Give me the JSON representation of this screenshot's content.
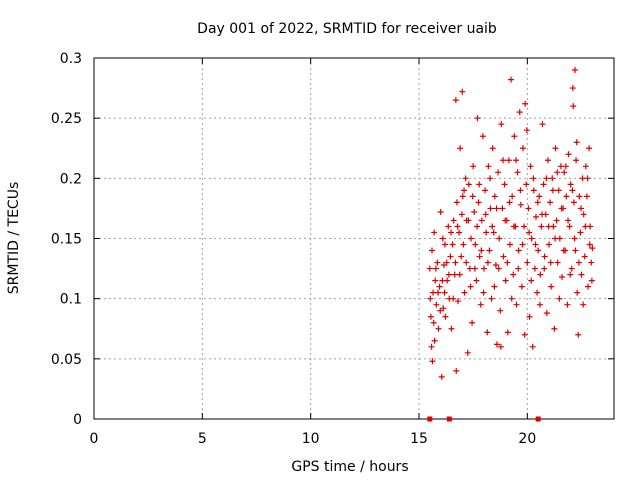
{
  "chart_data": {
    "type": "scatter",
    "title": "Day 001 of 2022, SRMTID for receiver uaib",
    "xlabel": "GPS time / hours",
    "ylabel": "SRMTID / TECUs",
    "xlim": [
      0,
      24
    ],
    "ylim": [
      0,
      0.3
    ],
    "xticks": [
      {
        "value": 0,
        "label": "0"
      },
      {
        "value": 5,
        "label": "5"
      },
      {
        "value": 10,
        "label": "10"
      },
      {
        "value": 15,
        "label": "15"
      },
      {
        "value": 20,
        "label": "20"
      }
    ],
    "yticks": [
      {
        "value": 0,
        "label": "0"
      },
      {
        "value": 0.05,
        "label": "0.05"
      },
      {
        "value": 0.1,
        "label": "0.1"
      },
      {
        "value": 0.15,
        "label": "0.15"
      },
      {
        "value": 0.2,
        "label": "0.2"
      },
      {
        "value": 0.25,
        "label": "0.25"
      },
      {
        "value": 0.3,
        "label": "0.3"
      }
    ],
    "grid": true,
    "marker": "plus",
    "color": "#e00000",
    "baseline_markers": [
      15.5,
      16.4,
      20.5
    ],
    "series": [
      {
        "name": "SRMTID",
        "points": [
          [
            15.5,
            0.125
          ],
          [
            15.55,
            0.085
          ],
          [
            15.6,
            0.14
          ],
          [
            15.62,
            0.048
          ],
          [
            15.65,
            0.105
          ],
          [
            15.7,
            0.155
          ],
          [
            15.72,
            0.065
          ],
          [
            15.75,
            0.115
          ],
          [
            15.8,
            0.095
          ],
          [
            15.85,
            0.13
          ],
          [
            15.9,
            0.075
          ],
          [
            15.95,
            0.11
          ],
          [
            16.0,
            0.172
          ],
          [
            16.05,
            0.035
          ],
          [
            16.1,
            0.15
          ],
          [
            16.12,
            0.092
          ],
          [
            16.15,
            0.128
          ],
          [
            16.2,
            0.145
          ],
          [
            16.22,
            0.085
          ],
          [
            16.3,
            0.115
          ],
          [
            16.35,
            0.16
          ],
          [
            16.4,
            0.1
          ],
          [
            16.45,
            0.135
          ],
          [
            16.5,
            0.075
          ],
          [
            16.55,
            0.145
          ],
          [
            16.6,
            0.165
          ],
          [
            16.65,
            0.12
          ],
          [
            16.7,
            0.265
          ],
          [
            16.72,
            0.04
          ],
          [
            16.75,
            0.18
          ],
          [
            16.8,
            0.098
          ],
          [
            16.85,
            0.155
          ],
          [
            16.9,
            0.225
          ],
          [
            16.95,
            0.135
          ],
          [
            17.0,
            0.272
          ],
          [
            17.02,
            0.185
          ],
          [
            17.05,
            0.145
          ],
          [
            17.1,
            0.105
          ],
          [
            17.15,
            0.2
          ],
          [
            17.2,
            0.165
          ],
          [
            17.25,
            0.055
          ],
          [
            17.3,
            0.195
          ],
          [
            17.35,
            0.125
          ],
          [
            17.4,
            0.15
          ],
          [
            17.45,
            0.08
          ],
          [
            17.5,
            0.21
          ],
          [
            17.55,
            0.172
          ],
          [
            17.6,
            0.145
          ],
          [
            17.65,
            0.115
          ],
          [
            17.7,
            0.25
          ],
          [
            17.75,
            0.18
          ],
          [
            17.8,
            0.135
          ],
          [
            17.85,
            0.095
          ],
          [
            17.9,
            0.165
          ],
          [
            17.95,
            0.235
          ],
          [
            18.0,
            0.125
          ],
          [
            18.05,
            0.19
          ],
          [
            18.1,
            0.155
          ],
          [
            18.15,
            0.072
          ],
          [
            18.2,
            0.21
          ],
          [
            18.25,
            0.14
          ],
          [
            18.3,
            0.175
          ],
          [
            18.35,
            0.1
          ],
          [
            18.4,
            0.225
          ],
          [
            18.45,
            0.155
          ],
          [
            18.5,
            0.185
          ],
          [
            18.55,
            0.128
          ],
          [
            18.6,
            0.062
          ],
          [
            18.65,
            0.205
          ],
          [
            18.7,
            0.15
          ],
          [
            18.75,
            0.09
          ],
          [
            18.8,
            0.245
          ],
          [
            18.85,
            0.175
          ],
          [
            18.9,
            0.135
          ],
          [
            18.95,
            0.195
          ],
          [
            19.0,
            0.115
          ],
          [
            19.05,
            0.165
          ],
          [
            19.1,
            0.072
          ],
          [
            19.15,
            0.215
          ],
          [
            19.2,
            0.145
          ],
          [
            19.25,
            0.282
          ],
          [
            19.3,
            0.185
          ],
          [
            19.35,
            0.12
          ],
          [
            19.4,
            0.235
          ],
          [
            19.45,
            0.16
          ],
          [
            19.5,
            0.095
          ],
          [
            19.55,
            0.205
          ],
          [
            19.6,
            0.14
          ],
          [
            19.65,
            0.255
          ],
          [
            19.7,
            0.178
          ],
          [
            19.75,
            0.11
          ],
          [
            19.8,
            0.225
          ],
          [
            19.85,
            0.16
          ],
          [
            19.9,
            0.262
          ],
          [
            19.95,
            0.195
          ],
          [
            20.0,
            0.13
          ],
          [
            20.05,
            0.175
          ],
          [
            20.1,
            0.085
          ],
          [
            20.15,
            0.21
          ],
          [
            20.2,
            0.15
          ],
          [
            20.25,
            0.06
          ],
          [
            20.3,
            0.19
          ],
          [
            20.35,
            0.125
          ],
          [
            20.4,
            0.168
          ],
          [
            20.45,
            0.105
          ],
          [
            20.5,
            0.14
          ],
          [
            20.55,
            0.185
          ],
          [
            20.6,
            0.12
          ],
          [
            20.65,
            0.16
          ],
          [
            20.7,
            0.245
          ],
          [
            20.75,
            0.195
          ],
          [
            20.8,
            0.135
          ],
          [
            20.85,
            0.17
          ],
          [
            20.9,
            0.088
          ],
          [
            20.95,
            0.215
          ],
          [
            21.0,
            0.145
          ],
          [
            21.05,
            0.18
          ],
          [
            21.1,
            0.11
          ],
          [
            21.15,
            0.2
          ],
          [
            21.2,
            0.16
          ],
          [
            21.25,
            0.075
          ],
          [
            21.3,
            0.225
          ],
          [
            21.35,
            0.165
          ],
          [
            21.4,
            0.13
          ],
          [
            21.45,
            0.19
          ],
          [
            21.5,
            0.15
          ],
          [
            21.55,
            0.21
          ],
          [
            21.6,
            0.118
          ],
          [
            21.65,
            0.175
          ],
          [
            21.7,
            0.205
          ],
          [
            21.75,
            0.14
          ],
          [
            21.8,
            0.185
          ],
          [
            21.85,
            0.095
          ],
          [
            21.9,
            0.22
          ],
          [
            21.95,
            0.16
          ],
          [
            22.0,
            0.195
          ],
          [
            22.05,
            0.125
          ],
          [
            22.1,
            0.275
          ],
          [
            22.12,
            0.26
          ],
          [
            22.15,
            0.18
          ],
          [
            22.2,
            0.29
          ],
          [
            22.22,
            0.14
          ],
          [
            22.25,
            0.215
          ],
          [
            22.3,
            0.105
          ],
          [
            22.35,
            0.07
          ],
          [
            22.4,
            0.185
          ],
          [
            22.45,
            0.155
          ],
          [
            22.5,
            0.12
          ],
          [
            22.55,
            0.2
          ],
          [
            22.6,
            0.17
          ],
          [
            22.65,
            0.135
          ],
          [
            22.7,
            0.21
          ],
          [
            22.75,
            0.185
          ],
          [
            22.8,
            0.11
          ],
          [
            22.85,
            0.225
          ],
          [
            22.9,
            0.16
          ],
          [
            22.95,
            0.13
          ],
          [
            23.0,
            0.142
          ],
          [
            15.52,
            0.1
          ],
          [
            15.58,
            0.06
          ],
          [
            15.68,
            0.08
          ],
          [
            15.78,
            0.125
          ],
          [
            15.88,
            0.105
          ],
          [
            15.98,
            0.09
          ],
          [
            16.08,
            0.115
          ],
          [
            16.18,
            0.105
          ],
          [
            16.28,
            0.13
          ],
          [
            16.38,
            0.12
          ],
          [
            16.48,
            0.155
          ],
          [
            16.58,
            0.1
          ],
          [
            16.68,
            0.13
          ],
          [
            16.78,
            0.16
          ],
          [
            16.88,
            0.12
          ],
          [
            16.98,
            0.17
          ],
          [
            17.08,
            0.19
          ],
          [
            17.18,
            0.13
          ],
          [
            17.28,
            0.165
          ],
          [
            17.38,
            0.11
          ],
          [
            17.48,
            0.185
          ],
          [
            17.58,
            0.125
          ],
          [
            17.68,
            0.16
          ],
          [
            17.78,
            0.195
          ],
          [
            17.88,
            0.14
          ],
          [
            17.98,
            0.105
          ],
          [
            18.08,
            0.17
          ],
          [
            18.18,
            0.13
          ],
          [
            18.28,
            0.2
          ],
          [
            18.38,
            0.16
          ],
          [
            18.48,
            0.11
          ],
          [
            18.58,
            0.175
          ],
          [
            18.68,
            0.125
          ],
          [
            18.78,
            0.06
          ],
          [
            18.88,
            0.215
          ],
          [
            18.98,
            0.165
          ],
          [
            19.08,
            0.13
          ],
          [
            19.18,
            0.18
          ],
          [
            19.28,
            0.1
          ],
          [
            19.38,
            0.16
          ],
          [
            19.48,
            0.215
          ],
          [
            19.58,
            0.125
          ],
          [
            19.68,
            0.19
          ],
          [
            19.78,
            0.145
          ],
          [
            19.88,
            0.07
          ],
          [
            19.98,
            0.24
          ],
          [
            20.08,
            0.155
          ],
          [
            20.18,
            0.115
          ],
          [
            20.28,
            0.2
          ],
          [
            20.38,
            0.145
          ],
          [
            20.48,
            0.18
          ],
          [
            20.58,
            0.095
          ],
          [
            20.68,
            0.17
          ],
          [
            20.78,
            0.125
          ],
          [
            20.88,
            0.2
          ],
          [
            20.98,
            0.16
          ],
          [
            21.08,
            0.13
          ],
          [
            21.18,
            0.19
          ],
          [
            21.28,
            0.15
          ],
          [
            21.38,
            0.205
          ],
          [
            21.48,
            0.1
          ],
          [
            21.58,
            0.175
          ],
          [
            21.68,
            0.14
          ],
          [
            21.78,
            0.21
          ],
          [
            21.88,
            0.165
          ],
          [
            21.98,
            0.12
          ],
          [
            22.08,
            0.19
          ],
          [
            22.18,
            0.15
          ],
          [
            22.28,
            0.23
          ],
          [
            22.38,
            0.13
          ],
          [
            22.48,
            0.175
          ],
          [
            22.58,
            0.095
          ],
          [
            22.68,
            0.16
          ],
          [
            22.78,
            0.2
          ],
          [
            22.88,
            0.145
          ],
          [
            22.98,
            0.115
          ]
        ]
      }
    ]
  }
}
